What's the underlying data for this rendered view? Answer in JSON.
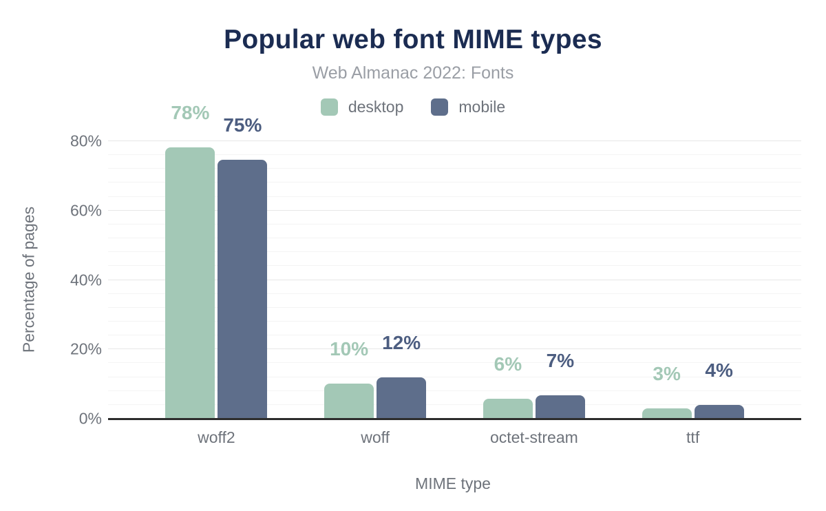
{
  "chart_data": {
    "type": "bar",
    "title": "Popular web font MIME types",
    "subtitle": "Web Almanac 2022: Fonts",
    "xlabel": "MIME type",
    "ylabel": "Percentage of pages",
    "categories": [
      "woff2",
      "woff",
      "octet-stream",
      "ttf"
    ],
    "series": [
      {
        "name": "desktop",
        "values": [
          78,
          10,
          5.6,
          2.8
        ],
        "data_labels": [
          "78%",
          "10%",
          "6%",
          "3%"
        ],
        "color": "#a3c8b6",
        "label_color": "#a3c8b6"
      },
      {
        "name": "mobile",
        "values": [
          74.5,
          11.7,
          6.5,
          3.7
        ],
        "data_labels": [
          "75%",
          "12%",
          "7%",
          "4%"
        ],
        "color": "#5e6e8b",
        "label_color": "#4c5d80"
      }
    ],
    "ylim": [
      0,
      80
    ],
    "yticks": [
      {
        "value": 0,
        "label": "0%"
      },
      {
        "value": 20,
        "label": "20%"
      },
      {
        "value": 40,
        "label": "40%"
      },
      {
        "value": 60,
        "label": "60%"
      },
      {
        "value": 80,
        "label": "80%"
      }
    ],
    "y_major_interval": 20,
    "y_minor_interval": 4,
    "grid": "horizontal minor gridlines on, vertical off",
    "legend_position": "top-center"
  },
  "theme": {
    "background": "#ffffff",
    "title_color": "#1b2c52",
    "subtitle_color": "#9a9ea5",
    "axis_text_color": "#6e737b",
    "axis_line_color": "#2d2d2d",
    "grid_major_color": "#e7e7e7",
    "grid_minor_color": "#f4f4f4"
  }
}
